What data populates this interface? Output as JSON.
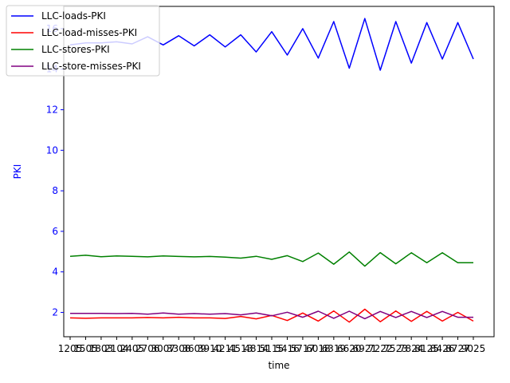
{
  "chart_data": {
    "type": "line",
    "title": "",
    "xlabel": "time",
    "ylabel": "PKI",
    "ylim": [
      0.8,
      17.1
    ],
    "yticks": [
      2,
      4,
      6,
      8,
      10,
      12,
      14,
      16
    ],
    "ytick_color": "#0000ff",
    "x": [
      "1205",
      "1505",
      "1803",
      "2104",
      "2405",
      "2706",
      "3007",
      "3308",
      "3609",
      "3910",
      "4211",
      "4513",
      "4814",
      "5115",
      "5416",
      "5717",
      "6018",
      "6319",
      "6620",
      "6921",
      "7222",
      "7523",
      "7824",
      "8125",
      "8426",
      "8727",
      "9025"
    ],
    "series": [
      {
        "name": "LLC-loads-PKI",
        "color": "#0000ff",
        "values": [
          15.2,
          15.3,
          15.3,
          15.35,
          15.25,
          15.6,
          15.2,
          15.65,
          15.15,
          15.7,
          15.1,
          15.7,
          14.85,
          15.85,
          14.7,
          16.0,
          14.55,
          16.35,
          14.05,
          16.5,
          13.95,
          16.35,
          14.3,
          16.3,
          14.5,
          16.3,
          14.5
        ]
      },
      {
        "name": "LLC-load-misses-PKI",
        "color": "#ff0000",
        "values": [
          1.73,
          1.71,
          1.73,
          1.73,
          1.73,
          1.75,
          1.73,
          1.76,
          1.73,
          1.73,
          1.7,
          1.8,
          1.68,
          1.85,
          1.6,
          1.97,
          1.57,
          2.07,
          1.52,
          2.16,
          1.54,
          2.07,
          1.56,
          2.05,
          1.57,
          2.0,
          1.57
        ]
      },
      {
        "name": "LLC-stores-PKI",
        "color": "#008000",
        "values": [
          4.77,
          4.82,
          4.75,
          4.79,
          4.77,
          4.74,
          4.79,
          4.76,
          4.74,
          4.76,
          4.73,
          4.68,
          4.77,
          4.62,
          4.8,
          4.51,
          4.93,
          4.38,
          4.98,
          4.28,
          4.95,
          4.4,
          4.94,
          4.45,
          4.94,
          4.45,
          4.45
        ]
      },
      {
        "name": "LLC-store-misses-PKI",
        "color": "#800080",
        "values": [
          1.95,
          1.95,
          1.95,
          1.94,
          1.95,
          1.91,
          1.97,
          1.91,
          1.94,
          1.91,
          1.94,
          1.88,
          1.97,
          1.83,
          2.01,
          1.76,
          2.06,
          1.71,
          2.06,
          1.69,
          2.05,
          1.75,
          2.05,
          1.75,
          2.05,
          1.76,
          1.76
        ]
      }
    ],
    "legend_position": "top-left"
  }
}
